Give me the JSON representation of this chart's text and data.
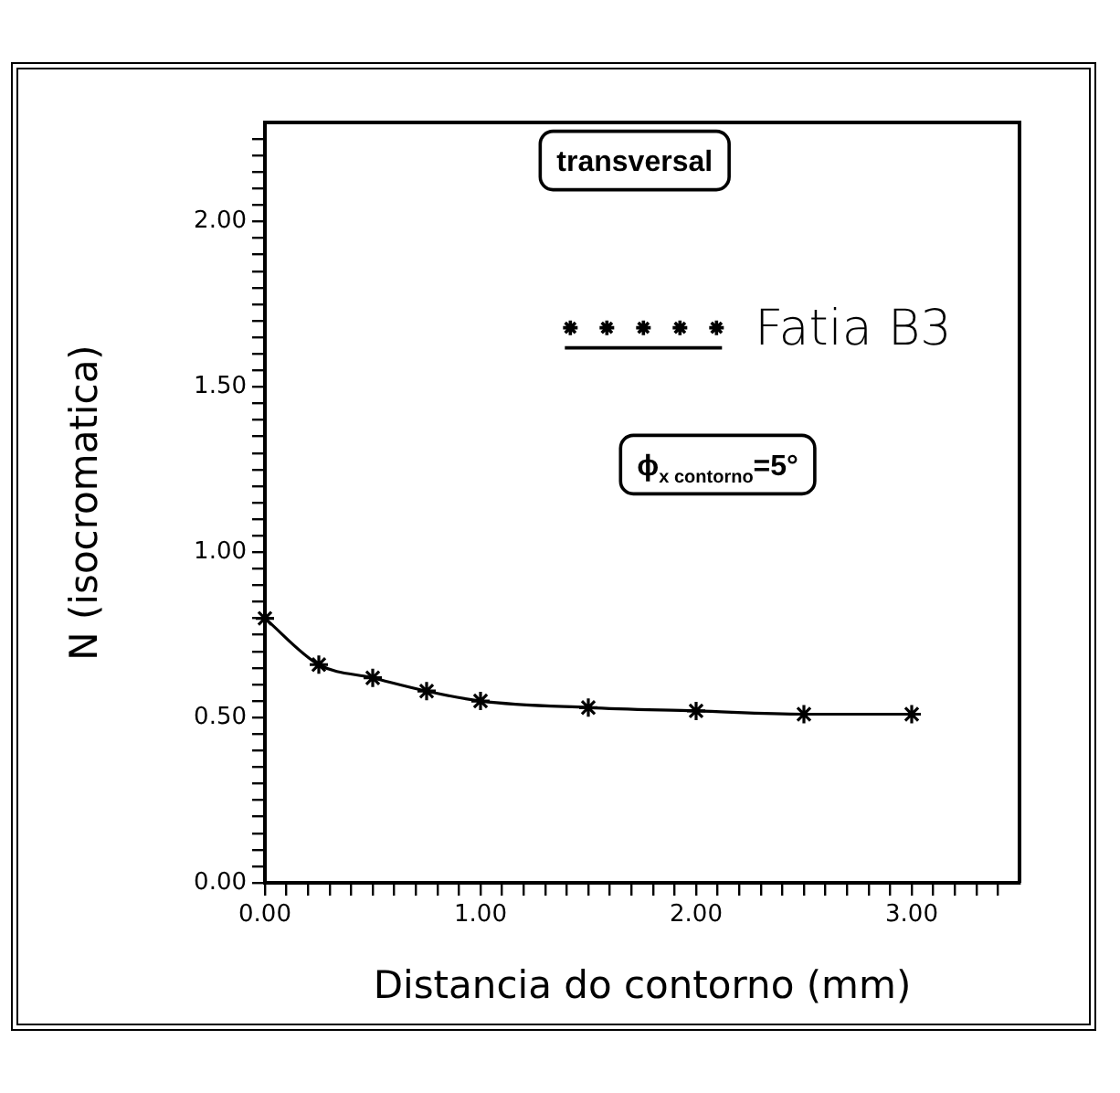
{
  "chart_data": {
    "type": "line",
    "xlabel": "Distancia do contorno (mm)",
    "ylabel": "N (isocromatica)",
    "annotations": [
      "transversal",
      "ϕ$_{x contorno}$=5°"
    ],
    "x": [
      0,
      0.25,
      0.5,
      0.75,
      1,
      1.5,
      2,
      2.5,
      3
    ],
    "series": [
      {
        "name": "Fatia B3",
        "color": "#000000",
        "values": [
          0.8,
          0.66,
          0.62,
          0.58,
          0.55,
          0.53,
          0.52,
          0.51,
          0.51
        ]
      }
    ],
    "xlim": [
      0,
      3.5
    ],
    "ylim": [
      0,
      2.3
    ],
    "xticks": [
      {
        "value": 0,
        "label": "0.00"
      },
      {
        "value": 0.1,
        "label": null
      },
      {
        "value": 0.2,
        "label": null
      },
      {
        "value": 0.3,
        "label": null
      },
      {
        "value": 0.4,
        "label": null
      },
      {
        "value": 0.5,
        "label": null
      },
      {
        "value": 0.6,
        "label": null
      },
      {
        "value": 0.7,
        "label": null
      },
      {
        "value": 0.8,
        "label": null
      },
      {
        "value": 0.9,
        "label": null
      },
      {
        "value": 1,
        "label": "1.00"
      },
      {
        "value": 1.1,
        "label": null
      },
      {
        "value": 1.2,
        "label": null
      },
      {
        "value": 1.3,
        "label": null
      },
      {
        "value": 1.4,
        "label": null
      },
      {
        "value": 1.5,
        "label": null
      },
      {
        "value": 1.6,
        "label": null
      },
      {
        "value": 1.7,
        "label": null
      },
      {
        "value": 1.8,
        "label": null
      },
      {
        "value": 1.9,
        "label": null
      },
      {
        "value": 2,
        "label": "2.00"
      },
      {
        "value": 2.1,
        "label": null
      },
      {
        "value": 2.2,
        "label": null
      },
      {
        "value": 2.3,
        "label": null
      },
      {
        "value": 2.4,
        "label": null
      },
      {
        "value": 2.5,
        "label": null
      },
      {
        "value": 2.6,
        "label": null
      },
      {
        "value": 2.7,
        "label": null
      },
      {
        "value": 2.8,
        "label": null
      },
      {
        "value": 2.9,
        "label": null
      },
      {
        "value": 3,
        "label": "3.00"
      },
      {
        "value": 3.1,
        "label": null
      },
      {
        "value": 3.2,
        "label": null
      },
      {
        "value": 3.3,
        "label": null
      },
      {
        "value": 3.4,
        "label": null
      }
    ],
    "yticks": [
      {
        "value": 0,
        "label": "0.00"
      },
      {
        "value": 0.05,
        "label": null
      },
      {
        "value": 0.1,
        "label": null
      },
      {
        "value": 0.15,
        "label": null
      },
      {
        "value": 0.2,
        "label": null
      },
      {
        "value": 0.25,
        "label": null
      },
      {
        "value": 0.3,
        "label": null
      },
      {
        "value": 0.35,
        "label": null
      },
      {
        "value": 0.4,
        "label": null
      },
      {
        "value": 0.45,
        "label": null
      },
      {
        "value": 0.5,
        "label": "0.50"
      },
      {
        "value": 0.55,
        "label": null
      },
      {
        "value": 0.6,
        "label": null
      },
      {
        "value": 0.65,
        "label": null
      },
      {
        "value": 0.7,
        "label": null
      },
      {
        "value": 0.75,
        "label": null
      },
      {
        "value": 0.8,
        "label": null
      },
      {
        "value": 0.85,
        "label": null
      },
      {
        "value": 0.9,
        "label": null
      },
      {
        "value": 0.95,
        "label": null
      },
      {
        "value": 1,
        "label": "1.00"
      },
      {
        "value": 1.05,
        "label": null
      },
      {
        "value": 1.1,
        "label": null
      },
      {
        "value": 1.15,
        "label": null
      },
      {
        "value": 1.2,
        "label": null
      },
      {
        "value": 1.25,
        "label": null
      },
      {
        "value": 1.3,
        "label": null
      },
      {
        "value": 1.35,
        "label": null
      },
      {
        "value": 1.4,
        "label": null
      },
      {
        "value": 1.45,
        "label": null
      },
      {
        "value": 1.5,
        "label": "1.50"
      },
      {
        "value": 1.55,
        "label": null
      },
      {
        "value": 1.6,
        "label": null
      },
      {
        "value": 1.65,
        "label": null
      },
      {
        "value": 1.7,
        "label": null
      },
      {
        "value": 1.75,
        "label": null
      },
      {
        "value": 1.8,
        "label": null
      },
      {
        "value": 1.85,
        "label": null
      },
      {
        "value": 1.9,
        "label": null
      },
      {
        "value": 1.95,
        "label": null
      },
      {
        "value": 2,
        "label": "2.00"
      },
      {
        "value": 2.05,
        "label": null
      },
      {
        "value": 2.1,
        "label": null
      },
      {
        "value": 2.15,
        "label": null
      },
      {
        "value": 2.2,
        "label": null
      },
      {
        "value": 2.25,
        "label": null
      }
    ],
    "marker": "cross",
    "line_style": "solid",
    "legend": "top right"
  }
}
